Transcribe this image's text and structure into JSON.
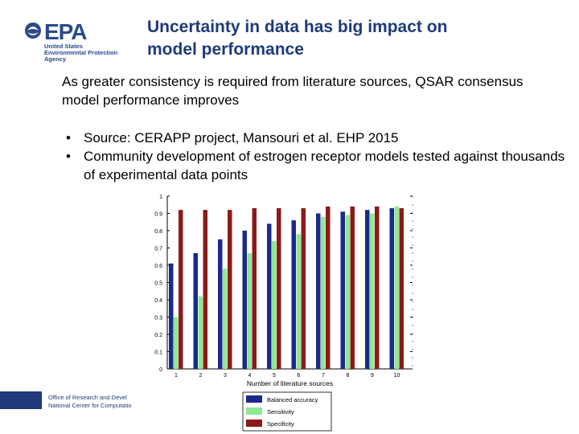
{
  "logo": {
    "text": "EPA",
    "sub": [
      "United States",
      "Environmental Protection",
      "Agency"
    ]
  },
  "slide": {
    "title_lines": [
      "Uncertainty in data has big impact on",
      "model performance"
    ],
    "intro": "As greater consistency is required from literature sources, QSAR consensus model performance improves",
    "bullets": [
      "Source: CERAPP project, Mansouri et al. EHP 2015",
      "Community development of estrogen receptor models tested against thousands of experimental data points"
    ]
  },
  "footer": {
    "lines": [
      "Office of Research and Devel",
      "National Center for Computatio"
    ]
  },
  "colors": {
    "title": "#1f3a7a",
    "balanced_accuracy": "#1b2a8a",
    "sensitivity": "#90e890",
    "specificity": "#8b1a1a"
  },
  "chart_data": {
    "type": "bar",
    "title": "",
    "xlabel": "Number of literature sources",
    "ylabel": "",
    "categories": [
      "1",
      "2",
      "3",
      "4",
      "5",
      "6",
      "7",
      "8",
      "9",
      "10"
    ],
    "ylim": [
      0,
      1
    ],
    "yticks": [
      "0",
      "0.1",
      "0.2",
      "0.3",
      "0.4",
      "0.5",
      "0.6",
      "0.7",
      "0.8",
      "0.9",
      "1"
    ],
    "legend_position": "bottom",
    "series": [
      {
        "name": "Balanced accuracy",
        "color": "#1b2a8a",
        "values": [
          0.61,
          0.67,
          0.75,
          0.8,
          0.84,
          0.86,
          0.9,
          0.91,
          0.92,
          0.93
        ]
      },
      {
        "name": "Sensitivity",
        "color": "#90e890",
        "values": [
          0.3,
          0.42,
          0.58,
          0.67,
          0.74,
          0.78,
          0.88,
          0.89,
          0.9,
          0.94
        ]
      },
      {
        "name": "Specificity",
        "color": "#8b1a1a",
        "values": [
          0.92,
          0.92,
          0.92,
          0.93,
          0.93,
          0.93,
          0.94,
          0.94,
          0.94,
          0.93
        ]
      }
    ]
  }
}
